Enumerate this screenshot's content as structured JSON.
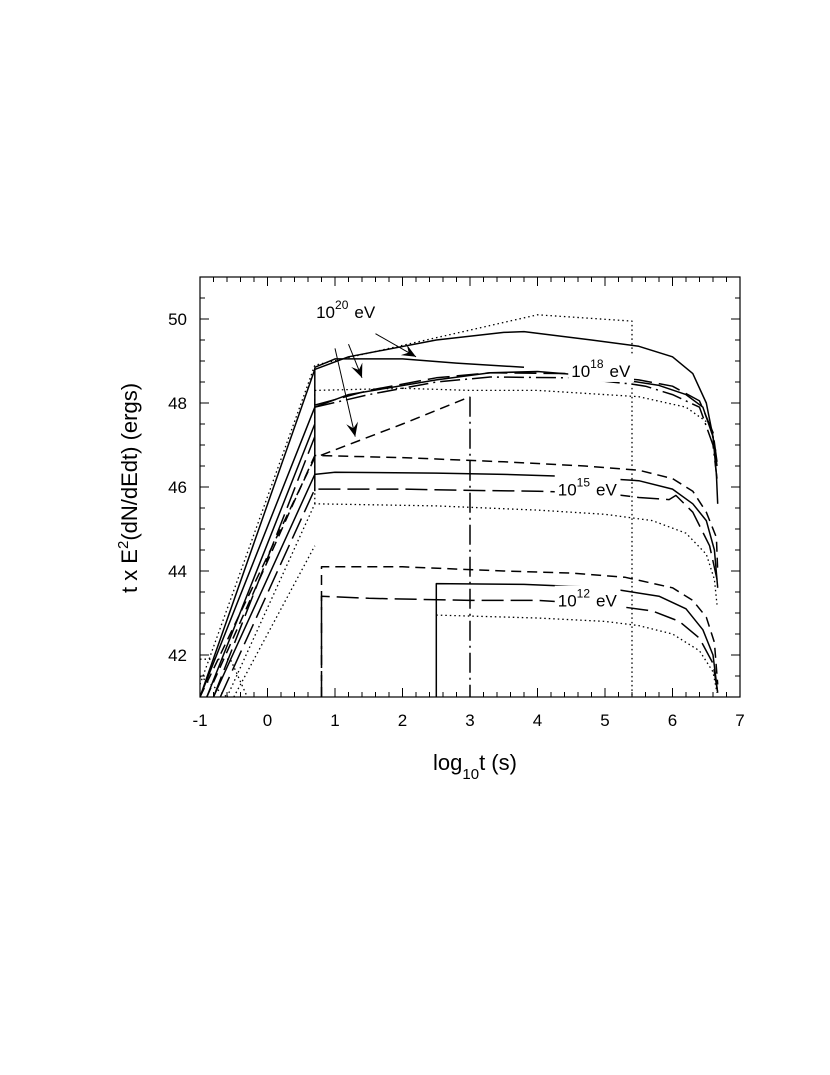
{
  "chart_data": {
    "type": "line",
    "title": "",
    "xlabel": {
      "base": "log",
      "sub": "10",
      "rest": "t (s)"
    },
    "ylabel": {
      "pre": "t x E",
      "sup": "2",
      "post": "(dN/dEdt)  (ergs)"
    },
    "xlim": [
      -1,
      7
    ],
    "ylim": [
      41,
      51
    ],
    "xticks": [
      -1,
      0,
      1,
      2,
      3,
      4,
      5,
      6,
      7
    ],
    "yticks": [
      42,
      44,
      46,
      48,
      50
    ],
    "grid": false,
    "legend": "none",
    "annotations": [
      {
        "base": "10",
        "sup": "20",
        "unit": "eV",
        "x": 0.72,
        "y": 50.02
      },
      {
        "base": "10",
        "sup": "18",
        "unit": "eV",
        "x": 4.5,
        "y": 48.62
      },
      {
        "base": "10",
        "sup": "15",
        "unit": "eV",
        "x": 4.3,
        "y": 45.8
      },
      {
        "base": "10",
        "sup": "12",
        "unit": "eV",
        "x": 4.3,
        "y": 43.15
      }
    ],
    "arrows": [
      {
        "from": [
          1.6,
          49.65
        ],
        "to": [
          2.2,
          49.1
        ]
      },
      {
        "from": [
          1.2,
          49.4
        ],
        "to": [
          1.4,
          48.6
        ]
      },
      {
        "from": [
          1.0,
          49.3
        ],
        "to": [
          1.3,
          47.2
        ]
      }
    ],
    "series": [
      {
        "style": "dotted",
        "points": [
          [
            -1,
            41.3
          ],
          [
            0.7,
            48.9
          ],
          [
            4.0,
            50.1
          ],
          [
            5.4,
            49.95
          ],
          [
            5.4,
            41
          ]
        ]
      },
      {
        "style": "solid",
        "points": [
          [
            -1,
            41
          ],
          [
            0.7,
            48.8
          ],
          [
            1.2,
            49.1
          ],
          [
            2.5,
            49.5
          ],
          [
            3.5,
            49.68
          ],
          [
            3.8,
            49.7
          ],
          [
            4.8,
            49.5
          ],
          [
            5.5,
            49.35
          ],
          [
            6.0,
            49.1
          ],
          [
            6.3,
            48.7
          ],
          [
            6.5,
            48.0
          ],
          [
            6.6,
            47.2
          ],
          [
            6.65,
            46.3
          ],
          [
            6.67,
            45.6
          ]
        ]
      },
      {
        "style": "solid",
        "points": [
          [
            0.7,
            48.85
          ],
          [
            1.0,
            49.05
          ],
          [
            2.0,
            49.05
          ],
          [
            2.8,
            48.95
          ],
          [
            3.8,
            48.85
          ]
        ]
      },
      {
        "style": "solid",
        "points": [
          [
            -1,
            41
          ],
          [
            0.7,
            47.9
          ],
          [
            1.2,
            48.2
          ],
          [
            2.5,
            48.55
          ],
          [
            3.3,
            48.72
          ],
          [
            4.0,
            48.75
          ],
          [
            5.0,
            48.62
          ],
          [
            5.8,
            48.42
          ],
          [
            6.2,
            48.2
          ],
          [
            6.45,
            47.9
          ],
          [
            6.6,
            47.2
          ],
          [
            6.66,
            46.5
          ]
        ]
      },
      {
        "style": "longdash",
        "points": [
          [
            0.7,
            47.95
          ],
          [
            1.5,
            48.3
          ],
          [
            2.5,
            48.6
          ],
          [
            3.3,
            48.72
          ],
          [
            4.5,
            48.7
          ],
          [
            5.5,
            48.55
          ],
          [
            6.0,
            48.4
          ],
          [
            6.4,
            48.05
          ],
          [
            6.6,
            47.3
          ],
          [
            6.66,
            46.6
          ]
        ]
      },
      {
        "style": "dashdot",
        "points": [
          [
            0.7,
            47.9
          ],
          [
            1.5,
            48.2
          ],
          [
            2.5,
            48.5
          ],
          [
            3.3,
            48.62
          ],
          [
            4.5,
            48.6
          ],
          [
            5.4,
            48.45
          ],
          [
            5.6,
            48.4
          ],
          [
            6.0,
            48.2
          ],
          [
            6.4,
            47.9
          ],
          [
            6.6,
            47.0
          ],
          [
            6.66,
            46.2
          ]
        ]
      },
      {
        "style": "dotted",
        "points": [
          [
            0.7,
            48.3
          ],
          [
            2.0,
            48.35
          ],
          [
            3.0,
            48.3
          ],
          [
            4.0,
            48.3
          ],
          [
            5.5,
            48.15
          ],
          [
            6.2,
            47.9
          ],
          [
            6.55,
            47.5
          ],
          [
            6.65,
            46.8
          ]
        ]
      },
      {
        "style": "dashed",
        "points": [
          [
            -1,
            41
          ],
          [
            0.7,
            46.7
          ],
          [
            2.0,
            47.5
          ],
          [
            3.0,
            48.15
          ]
        ]
      },
      {
        "style": "dashdot",
        "points": [
          [
            3.0,
            48.15
          ],
          [
            3.0,
            41
          ]
        ]
      },
      {
        "style": "dashed",
        "points": [
          [
            -0.9,
            41
          ],
          [
            0.7,
            46.75
          ],
          [
            2.0,
            46.7
          ],
          [
            3.5,
            46.6
          ],
          [
            4.7,
            46.5
          ],
          [
            5.5,
            46.4
          ],
          [
            6.0,
            46.2
          ],
          [
            6.3,
            45.9
          ],
          [
            6.5,
            45.4
          ],
          [
            6.65,
            44.8
          ],
          [
            6.67,
            44.0
          ]
        ]
      },
      {
        "style": "solid",
        "points": [
          [
            -0.8,
            41
          ],
          [
            0.7,
            46.3
          ],
          [
            1.0,
            46.35
          ],
          [
            2.5,
            46.33
          ],
          [
            3.5,
            46.3
          ],
          [
            4.5,
            46.25
          ],
          [
            5.5,
            46.15
          ],
          [
            6.0,
            45.95
          ],
          [
            6.3,
            45.6
          ],
          [
            6.5,
            45.2
          ],
          [
            6.62,
            44.5
          ],
          [
            6.67,
            43.6
          ]
        ]
      },
      {
        "style": "longdash",
        "points": [
          [
            -0.7,
            41
          ],
          [
            0.7,
            45.95
          ],
          [
            2.0,
            45.95
          ],
          [
            3.0,
            45.92
          ],
          [
            4.0,
            45.9
          ],
          [
            5.0,
            45.85
          ],
          [
            5.5,
            45.75
          ],
          [
            5.95,
            45.7
          ],
          [
            6.05,
            45.8
          ],
          [
            6.3,
            45.4
          ],
          [
            6.55,
            44.6
          ],
          [
            6.66,
            43.8
          ]
        ]
      },
      {
        "style": "dotted",
        "points": [
          [
            -0.6,
            41
          ],
          [
            0.7,
            45.6
          ],
          [
            2.5,
            45.55
          ],
          [
            4.0,
            45.45
          ],
          [
            5.0,
            45.35
          ],
          [
            5.7,
            45.2
          ],
          [
            6.2,
            44.9
          ],
          [
            6.5,
            44.4
          ],
          [
            6.62,
            43.8
          ],
          [
            6.66,
            43.2
          ]
        ]
      },
      {
        "style": "dashed",
        "points": [
          [
            0.8,
            41
          ],
          [
            0.8,
            44.1
          ],
          [
            2.0,
            44.1
          ],
          [
            3.5,
            44.0
          ],
          [
            4.5,
            43.95
          ],
          [
            5.3,
            43.85
          ],
          [
            6.0,
            43.6
          ],
          [
            6.3,
            43.3
          ],
          [
            6.5,
            42.9
          ],
          [
            6.62,
            42.3
          ],
          [
            6.67,
            41.3
          ]
        ]
      },
      {
        "style": "longdash",
        "points": [
          [
            0.8,
            41
          ],
          [
            0.8,
            43.4
          ],
          [
            1.5,
            43.35
          ],
          [
            3.0,
            43.3
          ],
          [
            4.0,
            43.3
          ],
          [
            5.0,
            43.2
          ],
          [
            5.7,
            43.05
          ],
          [
            6.1,
            42.8
          ],
          [
            6.4,
            42.4
          ],
          [
            6.6,
            41.8
          ],
          [
            6.67,
            41.1
          ]
        ]
      },
      {
        "style": "solid",
        "points": [
          [
            2.5,
            41
          ],
          [
            2.5,
            43.7
          ],
          [
            3.8,
            43.68
          ],
          [
            5.0,
            43.6
          ],
          [
            5.8,
            43.4
          ],
          [
            6.2,
            43.1
          ],
          [
            6.45,
            42.6
          ],
          [
            6.6,
            42.0
          ],
          [
            6.67,
            41.1
          ]
        ]
      },
      {
        "style": "dotted",
        "points": [
          [
            2.5,
            42.95
          ],
          [
            4.0,
            42.88
          ],
          [
            5.0,
            42.8
          ],
          [
            5.5,
            42.7
          ],
          [
            6.0,
            42.5
          ],
          [
            6.4,
            42.1
          ],
          [
            6.6,
            41.6
          ],
          [
            6.66,
            41.1
          ]
        ]
      },
      {
        "style": "dotted",
        "points": [
          [
            0.7,
            45.6
          ],
          [
            0.7,
            48.3
          ]
        ]
      },
      {
        "style": "solid",
        "points": [
          [
            0.7,
            45.9
          ],
          [
            0.7,
            48.85
          ]
        ]
      },
      {
        "style": "dotted",
        "points": [
          [
            -1,
            41.9
          ],
          [
            -0.55,
            41.9
          ],
          [
            -0.3,
            41
          ]
        ]
      },
      {
        "style": "dotted",
        "points": [
          [
            -1,
            41.5
          ],
          [
            -0.6,
            41
          ]
        ]
      },
      {
        "style": "solid",
        "points": [
          [
            -0.9,
            41
          ],
          [
            0.7,
            47.5
          ]
        ]
      },
      {
        "style": "longdash",
        "points": [
          [
            -0.8,
            41
          ],
          [
            0.7,
            47.2
          ]
        ]
      },
      {
        "style": "dotted",
        "points": [
          [
            -0.5,
            41
          ],
          [
            0.7,
            44.6
          ]
        ]
      }
    ]
  }
}
